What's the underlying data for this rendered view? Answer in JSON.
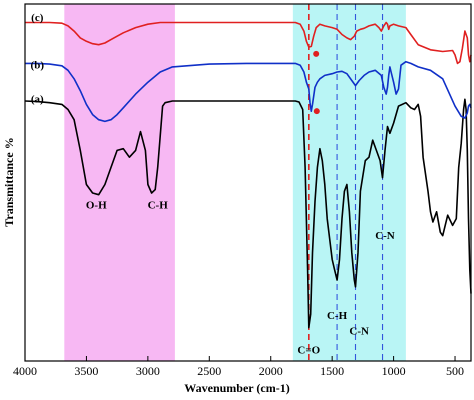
{
  "chart_data": {
    "type": "line",
    "xlabel": "Wavenumber (cm-1)",
    "ylabel": "Transmittance %",
    "xlim": [
      4000,
      370
    ],
    "x_reversed": true,
    "x_ticks": [
      4000,
      3500,
      3000,
      2500,
      2000,
      1500,
      1000,
      500
    ],
    "x_tick_labels": [
      "4000",
      "3500",
      "3000",
      "2500",
      "2000",
      "1500",
      "1000",
      "500"
    ],
    "ylim": [
      0,
      100
    ],
    "y_ticks_labeled": false,
    "grid": false,
    "legend": "none",
    "highlight_bands": [
      {
        "from": 3680,
        "to": 2780,
        "color": "#f7b8f3"
      },
      {
        "from": 1820,
        "to": 900,
        "color": "#b9f5f5"
      }
    ],
    "reference_lines": [
      {
        "x": 1690,
        "color": "#e02020"
      },
      {
        "x": 1460,
        "color": "#3355dd"
      },
      {
        "x": 1310,
        "color": "#3355dd"
      },
      {
        "x": 1090,
        "color": "#3355dd"
      }
    ],
    "markers": [
      {
        "x": 1630,
        "y": 88.3,
        "color": "#e02020"
      },
      {
        "x": 1625,
        "y": 71.5,
        "color": "#e02020"
      }
    ],
    "series_labels": [
      {
        "text": "(a)",
        "x": 3900,
        "y": 74
      },
      {
        "text": "(b)",
        "x": 3900,
        "y": 84
      },
      {
        "text": "(c)",
        "x": 3900,
        "y": 98
      }
    ],
    "annotations": [
      {
        "text": "O-H",
        "x": 3420,
        "y": 43
      },
      {
        "text": "C-H",
        "x": 2920,
        "y": 43
      },
      {
        "text": "C-H",
        "x": 1460,
        "y": 10.5
      },
      {
        "text": "C-N",
        "x": 1280,
        "y": 6
      },
      {
        "text": "C-N",
        "x": 1070,
        "y": 34
      },
      {
        "text": "C=O",
        "x": 1690,
        "y": 0.5
      }
    ],
    "series": [
      {
        "color": "#000000",
        "x": [
          4000,
          3900,
          3800,
          3700,
          3650,
          3600,
          3550,
          3500,
          3450,
          3400,
          3350,
          3300,
          3250,
          3200,
          3150,
          3100,
          3060,
          3020,
          3000,
          2970,
          2940,
          2920,
          2880,
          2860,
          2800,
          2500,
          2200,
          1900,
          1850,
          1800,
          1770,
          1740,
          1720,
          1700,
          1690,
          1675,
          1660,
          1640,
          1620,
          1600,
          1580,
          1560,
          1540,
          1500,
          1480,
          1460,
          1440,
          1420,
          1400,
          1380,
          1360,
          1340,
          1320,
          1310,
          1290,
          1270,
          1230,
          1200,
          1170,
          1140,
          1110,
          1090,
          1070,
          1050,
          1030,
          1000,
          960,
          900,
          860,
          830,
          800,
          780,
          760,
          720,
          700,
          680,
          650,
          620,
          600,
          580,
          560,
          520,
          490,
          470,
          450,
          430,
          420,
          410,
          400,
          390,
          380,
          370
        ],
        "values": [
          74.5,
          74.3,
          74.0,
          73.5,
          72.0,
          69.0,
          60.0,
          50.0,
          47.5,
          47.0,
          50.0,
          55.0,
          60.0,
          60.5,
          58.0,
          60.0,
          65.5,
          60.0,
          50.0,
          47.5,
          48.5,
          55.0,
          73.0,
          74.0,
          74.5,
          74.5,
          74.5,
          74.5,
          74.5,
          74.5,
          74.2,
          72.0,
          55.0,
          25.0,
          8.0,
          12.0,
          30.0,
          45.0,
          55.0,
          60.5,
          57.0,
          50.0,
          40.0,
          28.0,
          25.0,
          22.0,
          28.0,
          40.0,
          48.0,
          50.0,
          42.0,
          30.0,
          22.0,
          20.0,
          30.0,
          48.0,
          57.0,
          58.0,
          63.0,
          60.0,
          57.0,
          52.0,
          60.0,
          67.0,
          65.0,
          68.0,
          73.0,
          74.0,
          72.5,
          72.0,
          73.5,
          70.0,
          58.0,
          48.0,
          42.0,
          39.0,
          42.0,
          36.0,
          35.0,
          38.0,
          41.0,
          38.0,
          40.0,
          55.0,
          62.0,
          72.0,
          75.0,
          72.0,
          60.0,
          40.0,
          25.0,
          18.0
        ]
      },
      {
        "color": "#1030c8",
        "x": [
          4000,
          3900,
          3800,
          3700,
          3650,
          3600,
          3550,
          3500,
          3450,
          3400,
          3350,
          3300,
          3250,
          3200,
          3100,
          3000,
          2900,
          2800,
          2500,
          2200,
          1900,
          1800,
          1760,
          1730,
          1710,
          1690,
          1680,
          1670,
          1660,
          1640,
          1620,
          1600,
          1560,
          1500,
          1460,
          1420,
          1380,
          1340,
          1310,
          1280,
          1240,
          1200,
          1150,
          1100,
          1080,
          1060,
          1050,
          1040,
          1030,
          1020,
          1000,
          980,
          960,
          940,
          900,
          860,
          800,
          700,
          600,
          500,
          450,
          420,
          400,
          390,
          380,
          370
        ],
        "values": [
          85.5,
          85.5,
          85.3,
          84.8,
          83.5,
          81.0,
          77.5,
          73.5,
          70.5,
          69.0,
          68.5,
          69.0,
          70.5,
          72.5,
          76.5,
          80.0,
          83.0,
          84.5,
          85.3,
          85.5,
          85.5,
          85.5,
          85.0,
          83.0,
          80.0,
          78.0,
          74.0,
          71.5,
          73.5,
          78.5,
          80.0,
          81.0,
          82.0,
          82.5,
          83.0,
          83.2,
          82.5,
          80.5,
          79.0,
          80.5,
          82.0,
          83.0,
          83.5,
          82.0,
          78.5,
          76.5,
          78.5,
          82.0,
          84.5,
          83.0,
          80.0,
          76.5,
          78.0,
          85.0,
          86.0,
          85.5,
          84.5,
          83.5,
          81.0,
          73.0,
          70.0,
          69.5,
          71.0,
          73.0,
          73.5,
          72.5
        ]
      },
      {
        "color": "#e02020",
        "x": [
          4000,
          3900,
          3800,
          3700,
          3650,
          3600,
          3550,
          3500,
          3450,
          3400,
          3350,
          3300,
          3250,
          3200,
          3100,
          3000,
          2900,
          2800,
          2700,
          2500,
          2200,
          1900,
          1800,
          1760,
          1730,
          1710,
          1690,
          1670,
          1650,
          1630,
          1600,
          1560,
          1500,
          1460,
          1420,
          1380,
          1350,
          1320,
          1300,
          1270,
          1240,
          1200,
          1150,
          1120,
          1100,
          1080,
          1060,
          1050,
          1040,
          1030,
          1000,
          960,
          900,
          860,
          800,
          700,
          600,
          520,
          500,
          480,
          460,
          440,
          420,
          400,
          390,
          380,
          370
        ],
        "values": [
          97.5,
          97.5,
          97.5,
          97.3,
          96.5,
          95.0,
          93.0,
          92.0,
          91.3,
          91.0,
          91.5,
          92.5,
          93.5,
          94.5,
          96.0,
          97.0,
          97.5,
          97.5,
          97.5,
          97.5,
          97.5,
          97.5,
          97.5,
          97.0,
          95.0,
          92.0,
          90.3,
          90.5,
          93.5,
          96.0,
          97.0,
          96.5,
          96.0,
          95.5,
          94.0,
          93.0,
          92.5,
          93.5,
          95.0,
          95.5,
          95.8,
          96.5,
          97.0,
          96.0,
          95.0,
          96.5,
          97.5,
          97.0,
          95.5,
          96.5,
          97.0,
          96.5,
          96.0,
          94.0,
          91.0,
          89.5,
          89.0,
          89.3,
          88.0,
          85.5,
          86.0,
          90.0,
          95.0,
          93.0,
          88.0,
          86.0,
          88.0
        ]
      }
    ]
  }
}
